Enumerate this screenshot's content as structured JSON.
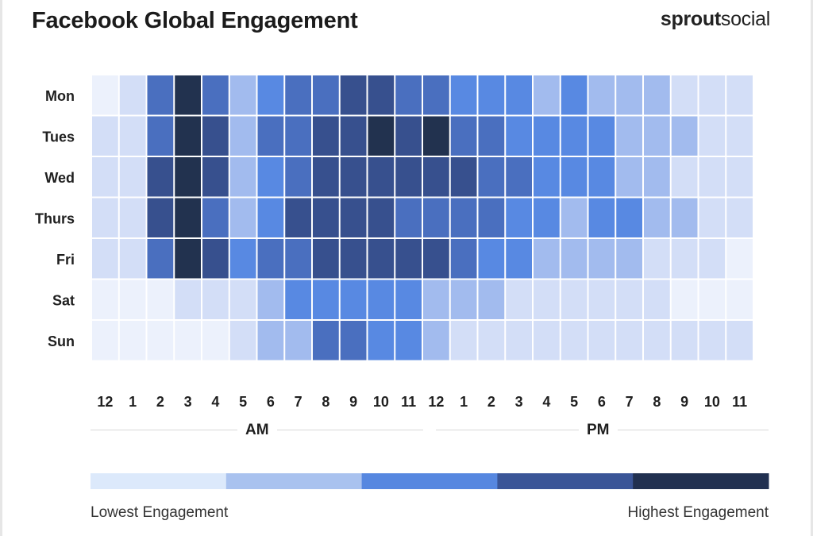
{
  "title": "Facebook Global Engagement",
  "brand": {
    "bold": "sprout",
    "light": "social"
  },
  "chart_data": {
    "type": "heatmap",
    "title": "Facebook Global Engagement",
    "rows": [
      "Mon",
      "Tues",
      "Wed",
      "Thurs",
      "Fri",
      "Sat",
      "Sun"
    ],
    "columns": [
      "12",
      "1",
      "2",
      "3",
      "4",
      "5",
      "6",
      "7",
      "8",
      "9",
      "10",
      "11",
      "12",
      "1",
      "2",
      "3",
      "4",
      "5",
      "6",
      "7",
      "8",
      "9",
      "10",
      "11"
    ],
    "period_labels": {
      "am": "AM",
      "pm": "PM"
    },
    "scale_min": 0,
    "scale_max": 10,
    "values": [
      [
        0,
        1,
        6,
        10,
        6,
        2,
        5,
        6,
        6,
        8,
        8,
        6,
        6,
        5,
        5,
        5,
        2,
        5,
        2,
        2,
        2,
        1,
        1,
        1
      ],
      [
        1,
        1,
        6,
        10,
        8,
        2,
        6,
        6,
        8,
        8,
        10,
        8,
        10,
        6,
        6,
        5,
        5,
        5,
        5,
        2,
        2,
        2,
        1,
        1
      ],
      [
        1,
        1,
        8,
        10,
        8,
        2,
        5,
        6,
        8,
        8,
        8,
        8,
        8,
        8,
        6,
        6,
        5,
        5,
        5,
        2,
        2,
        1,
        1,
        1
      ],
      [
        1,
        1,
        8,
        10,
        6,
        2,
        5,
        8,
        8,
        8,
        8,
        6,
        6,
        6,
        6,
        5,
        5,
        2,
        5,
        5,
        2,
        2,
        1,
        1
      ],
      [
        1,
        1,
        6,
        10,
        8,
        5,
        6,
        6,
        8,
        8,
        8,
        8,
        8,
        6,
        5,
        5,
        2,
        2,
        2,
        2,
        1,
        1,
        1,
        0
      ],
      [
        0,
        0,
        0,
        1,
        1,
        1,
        2,
        5,
        5,
        5,
        5,
        5,
        2,
        2,
        2,
        1,
        1,
        1,
        1,
        1,
        1,
        0,
        0,
        0
      ],
      [
        0,
        0,
        0,
        0,
        0,
        1,
        2,
        2,
        6,
        6,
        5,
        5,
        2,
        1,
        1,
        1,
        1,
        1,
        1,
        1,
        1,
        1,
        1,
        1
      ]
    ],
    "legend": {
      "low_label": "Lowest Engagement",
      "high_label": "Highest Engagement",
      "colors": [
        "#dce9fb",
        "#a9c2ef",
        "#5687e0",
        "#3a5597",
        "#213050"
      ]
    }
  }
}
